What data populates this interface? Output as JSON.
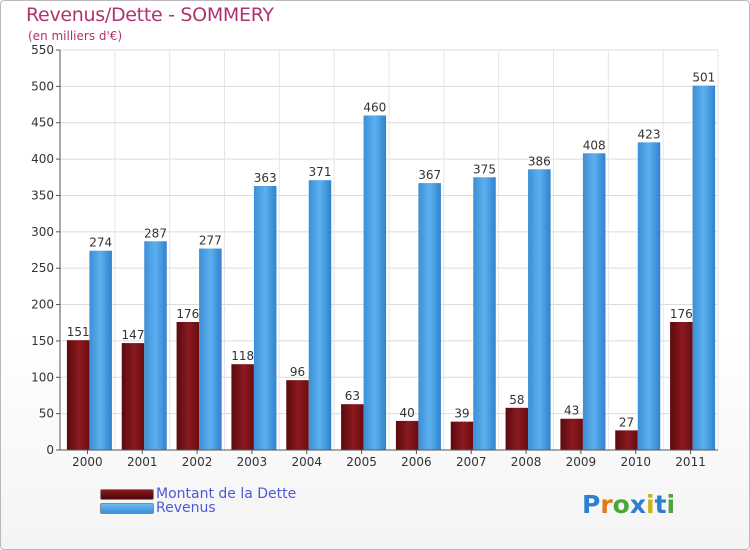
{
  "title": "Revenus/Dette - SOMMERY",
  "subtitle": "(en milliers d'€)",
  "logo_text": "Proxiti",
  "colors": {
    "dette": "#7a1015",
    "revenus": "#4aa3e8",
    "title": "#b0336e",
    "legend_text": "#4a5ad6"
  },
  "chart_data": {
    "type": "bar",
    "categories": [
      "2000",
      "2001",
      "2002",
      "2003",
      "2004",
      "2005",
      "2006",
      "2007",
      "2008",
      "2009",
      "2010",
      "2011"
    ],
    "series": [
      {
        "name": "Montant de la Dette",
        "values": [
          151,
          147,
          176,
          118,
          96,
          63,
          40,
          39,
          58,
          43,
          27,
          176
        ]
      },
      {
        "name": "Revenus",
        "values": [
          274,
          287,
          277,
          363,
          371,
          460,
          367,
          375,
          386,
          408,
          423,
          501
        ]
      }
    ],
    "title": "Revenus/Dette - SOMMERY",
    "ylabel": "(en milliers d'€)",
    "ylim": [
      0,
      550
    ],
    "yticks": [
      0,
      50,
      100,
      150,
      200,
      250,
      300,
      350,
      400,
      450,
      500,
      550
    ],
    "grid": true,
    "legend_position": "bottom-left"
  }
}
